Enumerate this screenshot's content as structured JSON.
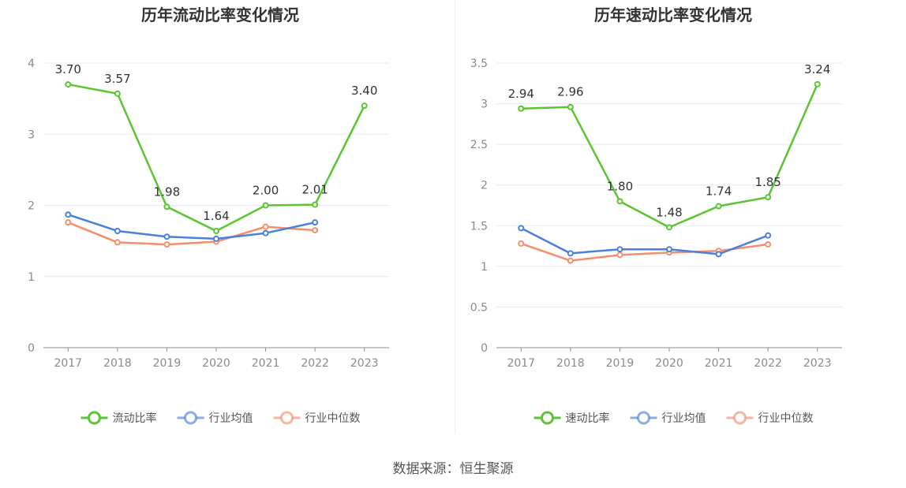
{
  "colors": {
    "primary": "#5ac533",
    "average": "#4a7fde",
    "median": "#f58e6b",
    "grid": "#e6e8f0",
    "axis": "#8c8c8c"
  },
  "source": "数据来源：恒生聚源",
  "chart_data": [
    {
      "type": "line",
      "title": "历年流动比率变化情况",
      "categories": [
        "2017",
        "2018",
        "2019",
        "2020",
        "2021",
        "2022",
        "2023"
      ],
      "ylim": [
        0,
        4
      ],
      "yticks": [
        "0",
        "1",
        "2",
        "3",
        "4"
      ],
      "grid": true,
      "legend_position": "bottom-center",
      "series": [
        {
          "name": "流动比率",
          "values": [
            3.7,
            3.57,
            1.98,
            1.64,
            2.0,
            2.01,
            3.4
          ],
          "labels": [
            "3.70",
            "3.57",
            "1.98",
            "1.64",
            "2.00",
            "2.01",
            "3.40"
          ]
        },
        {
          "name": "行业均值",
          "values": [
            1.87,
            1.64,
            1.56,
            1.53,
            1.61,
            1.76,
            null
          ]
        },
        {
          "name": "行业中位数",
          "values": [
            1.76,
            1.48,
            1.45,
            1.49,
            1.7,
            1.65,
            null
          ]
        }
      ]
    },
    {
      "type": "line",
      "title": "历年速动比率变化情况",
      "categories": [
        "2017",
        "2018",
        "2019",
        "2020",
        "2021",
        "2022",
        "2023"
      ],
      "ylim": [
        0,
        3.5
      ],
      "yticks": [
        "0",
        "0.5",
        "1",
        "1.5",
        "2",
        "2.5",
        "3",
        "3.5"
      ],
      "grid": true,
      "legend_position": "bottom-center",
      "series": [
        {
          "name": "速动比率",
          "values": [
            2.94,
            2.96,
            1.8,
            1.48,
            1.74,
            1.85,
            3.24
          ],
          "labels": [
            "2.94",
            "2.96",
            "1.80",
            "1.48",
            "1.74",
            "1.85",
            "3.24"
          ]
        },
        {
          "name": "行业均值",
          "values": [
            1.47,
            1.16,
            1.21,
            1.21,
            1.15,
            1.38,
            null
          ]
        },
        {
          "name": "行业中位数",
          "values": [
            1.28,
            1.07,
            1.14,
            1.17,
            1.19,
            1.27,
            null
          ]
        }
      ]
    }
  ]
}
